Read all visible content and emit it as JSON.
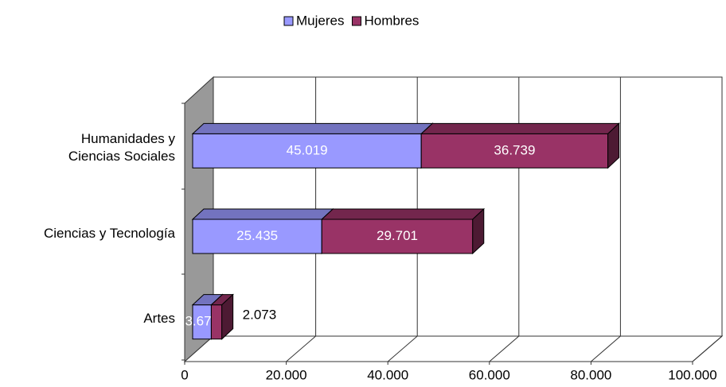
{
  "chart_data": {
    "type": "bar3d-stacked-horizontal",
    "categories": [
      "Artes",
      "Ciencias y Tecnología",
      "Humanidades y\nCiencias Sociales"
    ],
    "series": [
      {
        "name": "Mujeres",
        "color": "#9999ff",
        "values": [
          3673,
          25435,
          45019
        ],
        "value_labels": [
          "3.673",
          "25.435",
          "45.019"
        ]
      },
      {
        "name": "Hombres",
        "color": "#993366",
        "values": [
          2073,
          29701,
          36739
        ],
        "value_labels": [
          "2.073",
          "29.701",
          "36.739"
        ]
      }
    ],
    "xlim": [
      0,
      100000
    ],
    "xticks": [
      0,
      {
        "value": 20000,
        "label": "20.000"
      },
      {
        "value": 40000,
        "label": "40.000"
      },
      {
        "value": 60000,
        "label": "60.000"
      },
      {
        "value": 80000,
        "label": "80.000"
      },
      {
        "value": 100000,
        "label": "100.000"
      }
    ],
    "grid": true,
    "legend": "top"
  }
}
